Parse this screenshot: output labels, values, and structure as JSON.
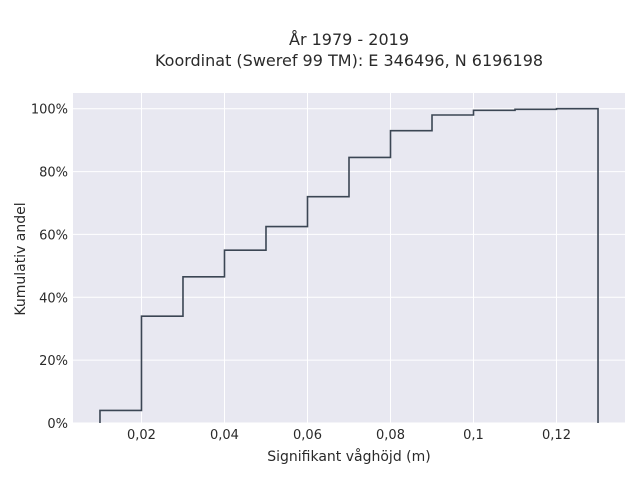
{
  "chart_data": {
    "type": "line",
    "title_lines": [
      "År 1979 - 2019",
      "Koordinat (Sweref 99 TM): E 346496, N 6196198"
    ],
    "xlabel": "Signifikant våghöjd (m)",
    "ylabel": "Kumulativ andel",
    "xlim": [
      0.0035,
      0.1365
    ],
    "ylim": [
      0,
      1.05
    ],
    "x_ticks": [
      0.02,
      0.04,
      0.06,
      0.08,
      0.1,
      0.12
    ],
    "x_tick_labels": [
      "0,02",
      "0,04",
      "0,06",
      "0,08",
      "0,1",
      "0,12"
    ],
    "y_ticks": [
      0,
      0.2,
      0.4,
      0.6,
      0.8,
      1.0
    ],
    "y_tick_labels": [
      "0%",
      "20%",
      "40%",
      "60%",
      "80%",
      "100%"
    ],
    "grid": true,
    "plot_background": "#e8e8f1",
    "line_color": "#3b4654",
    "series": [
      {
        "style": "step-cumulative",
        "bins": [
          0.01,
          0.02,
          0.03,
          0.04,
          0.05,
          0.06,
          0.07,
          0.08,
          0.09,
          0.1,
          0.11,
          0.12,
          0.13
        ],
        "values": [
          0.04,
          0.34,
          0.465,
          0.55,
          0.625,
          0.72,
          0.845,
          0.93,
          0.98,
          0.995,
          0.998,
          1.0
        ]
      }
    ]
  }
}
